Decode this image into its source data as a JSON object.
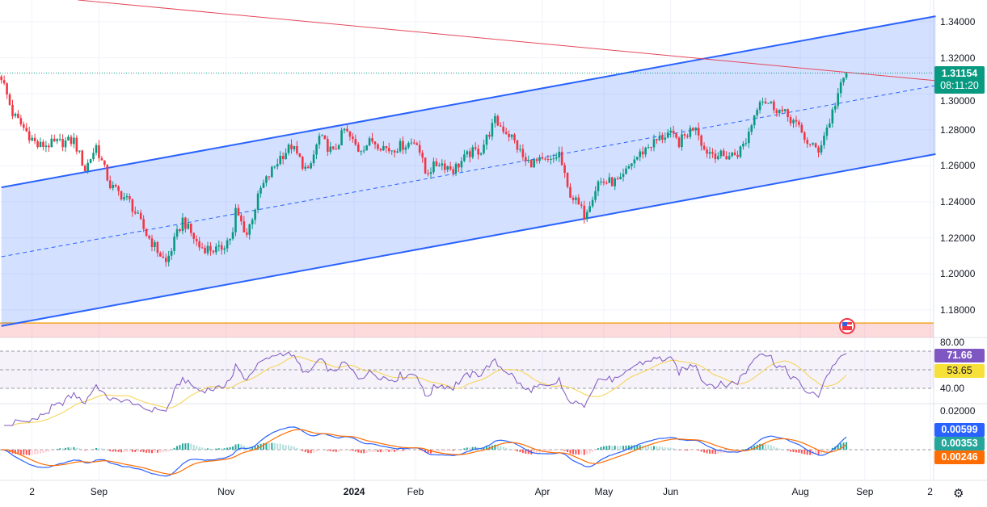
{
  "chart_data": {
    "type": "candlestick",
    "symbol_pane": {
      "y_ticks": [
        "1.34000",
        "1.32000",
        "1.30000",
        "1.28000",
        "1.26000",
        "1.24000",
        "1.22000",
        "1.20000",
        "1.18000"
      ],
      "y_tick_values": [
        1.34,
        1.32,
        1.3,
        1.28,
        1.26,
        1.24,
        1.22,
        1.2,
        1.18
      ],
      "ylim": [
        1.165,
        1.352
      ],
      "last_price": "1.31154",
      "last_price_value": 1.31154,
      "countdown": "08:11:20",
      "close_path_keypoints": [
        [
          0,
          1.3095
        ],
        [
          4,
          1.289
        ],
        [
          13,
          1.271
        ],
        [
          26,
          1.274
        ],
        [
          30,
          1.258
        ],
        [
          34,
          1.271
        ],
        [
          39,
          1.249
        ],
        [
          46,
          1.24
        ],
        [
          52,
          1.222
        ],
        [
          59,
          1.206
        ],
        [
          65,
          1.23
        ],
        [
          71,
          1.215
        ],
        [
          78,
          1.213
        ],
        [
          83,
          1.222
        ],
        [
          84,
          1.235
        ],
        [
          88,
          1.222
        ],
        [
          93,
          1.247
        ],
        [
          100,
          1.265
        ],
        [
          104,
          1.271
        ],
        [
          110,
          1.256
        ],
        [
          114,
          1.276
        ],
        [
          119,
          1.267
        ],
        [
          123,
          1.28
        ],
        [
          128,
          1.269
        ],
        [
          133,
          1.274
        ],
        [
          139,
          1.269
        ],
        [
          149,
          1.274
        ],
        [
          152,
          1.256
        ],
        [
          157,
          1.262
        ],
        [
          162,
          1.258
        ],
        [
          168,
          1.267
        ],
        [
          172,
          1.269
        ],
        [
          177,
          1.285
        ],
        [
          183,
          1.276
        ],
        [
          188,
          1.262
        ],
        [
          197,
          1.262
        ],
        [
          200,
          1.267
        ],
        [
          203,
          1.247
        ],
        [
          209,
          1.233
        ],
        [
          214,
          1.251
        ],
        [
          222,
          1.251
        ],
        [
          226,
          1.262
        ],
        [
          232,
          1.271
        ],
        [
          239,
          1.278
        ],
        [
          243,
          1.273
        ],
        [
          249,
          1.283
        ],
        [
          252,
          1.269
        ],
        [
          259,
          1.265
        ],
        [
          264,
          1.267
        ],
        [
          267,
          1.274
        ],
        [
          272,
          1.298
        ],
        [
          278,
          1.292
        ],
        [
          284,
          1.285
        ],
        [
          290,
          1.271
        ],
        [
          293,
          1.269
        ],
        [
          297,
          1.285
        ],
        [
          300,
          1.3
        ],
        [
          303,
          1.3115
        ]
      ],
      "channel": {
        "upper": [
          [
            0,
            1.248
          ],
          [
            335,
            1.3431
          ]
        ],
        "middle": [
          [
            0,
            1.2095
          ],
          [
            335,
            1.3046
          ]
        ],
        "lower": [
          [
            0,
            1.171
          ],
          [
            335,
            1.2665
          ]
        ]
      },
      "trendline": [
        [
          27.5,
          1.3521
        ],
        [
          335,
          1.3073
        ]
      ],
      "support_level": 1.1727
    },
    "rsi_pane": {
      "y_ticks": [
        "80.00",
        "40.00"
      ],
      "y_tick_values": [
        80,
        40
      ],
      "bands": [
        80,
        60,
        40
      ],
      "rsi_label": "71.66",
      "rsi_ma_label": "53.65",
      "period": 14
    },
    "macd_pane": {
      "y_ticks": [
        "0.02000"
      ],
      "y_tick_values": [
        0.02
      ],
      "macd_label": "0.00599",
      "signal_label": "0.00353",
      "histogram_label": "0.00246"
    },
    "x_ticks": [
      {
        "label": "2",
        "index": 11
      },
      {
        "label": "Sep",
        "index": 35
      },
      {
        "label": "Nov",
        "index": 80.6
      },
      {
        "label": "2024",
        "index": 126.5
      },
      {
        "label": "Feb",
        "index": 148.5
      },
      {
        "label": "Apr",
        "index": 194
      },
      {
        "label": "May",
        "index": 216
      },
      {
        "label": "Jun",
        "index": 240
      },
      {
        "label": "Aug",
        "index": 286.5
      },
      {
        "label": "Sep",
        "index": 309.6
      },
      {
        "label": "2",
        "index": 333
      }
    ],
    "colors": {
      "up": "#089981",
      "down": "#f23645",
      "channel": "#2962ff",
      "trend": "#e5475a",
      "rsi": "#7e57c2",
      "rsi_ma": "#f7d24a",
      "macd": "#2962ff",
      "signal": "#ff6d00",
      "support": "#f5a623"
    }
  },
  "icons": {
    "event": "us-flag-icon",
    "settings": "gear-icon"
  }
}
